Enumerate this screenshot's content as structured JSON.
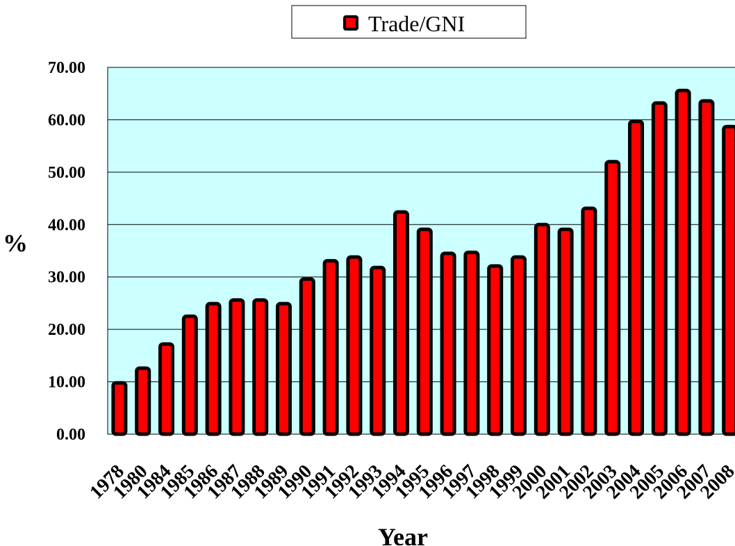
{
  "chart_data": {
    "type": "bar",
    "x_label": "Year",
    "y_label": "%",
    "categories": [
      "1978",
      "1980",
      "1984",
      "1985",
      "1986",
      "1987",
      "1988",
      "1989",
      "1990",
      "1991",
      "1992",
      "1993",
      "1994",
      "1995",
      "1996",
      "1997",
      "1998",
      "1999",
      "2000",
      "2001",
      "2002",
      "2003",
      "2004",
      "2005",
      "2006",
      "2007",
      "2008"
    ],
    "series": [
      {
        "name": "Trade/GNI",
        "color": "#ff0000",
        "values": [
          9.8,
          12.6,
          17.2,
          22.5,
          24.9,
          25.6,
          25.6,
          24.9,
          29.6,
          33.1,
          33.8,
          31.8,
          42.4,
          39.1,
          34.5,
          34.7,
          32.1,
          33.8,
          40.0,
          39.1,
          43.1,
          52.0,
          59.7,
          63.2,
          65.6,
          63.6,
          58.7
        ]
      }
    ],
    "ylim": [
      0,
      70
    ],
    "yticks": [
      {
        "value": 0,
        "label": "0.00"
      },
      {
        "value": 10,
        "label": "10.00"
      },
      {
        "value": 20,
        "label": "20.00"
      },
      {
        "value": 30,
        "label": "30.00"
      },
      {
        "value": 40,
        "label": "40.00"
      },
      {
        "value": 50,
        "label": "50.00"
      },
      {
        "value": 60,
        "label": "60.00"
      },
      {
        "value": 70,
        "label": "70.00"
      }
    ],
    "grid": true,
    "legend": "top",
    "plot_background": "#ccffff"
  }
}
